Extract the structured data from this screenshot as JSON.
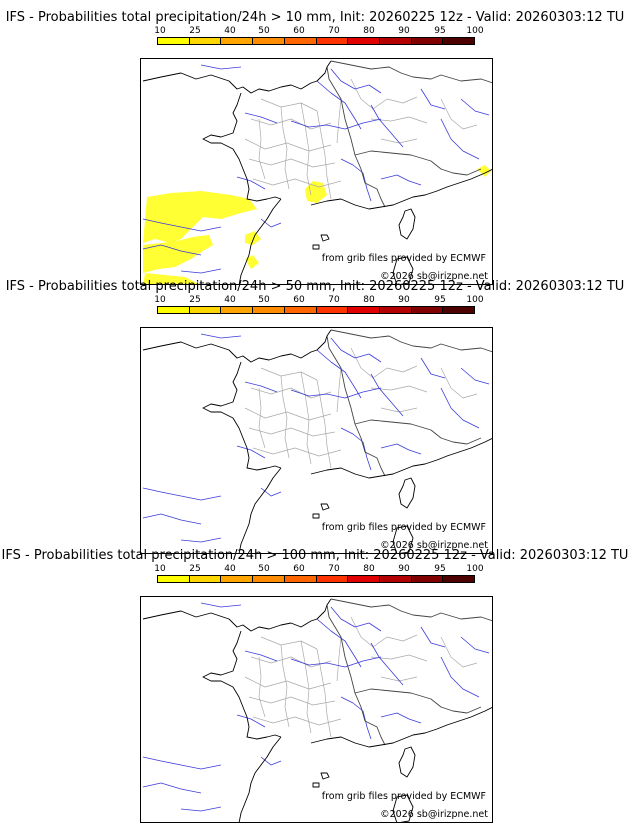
{
  "colorbar": {
    "ticks": [
      "10",
      "25",
      "40",
      "50",
      "60",
      "70",
      "80",
      "90",
      "95",
      "100"
    ],
    "colors": [
      "#ffff00",
      "#ffd700",
      "#ffa500",
      "#ff8c00",
      "#ff6600",
      "#ff3300",
      "#e00000",
      "#b30000",
      "#800000",
      "#4d0000"
    ]
  },
  "panels": [
    {
      "title": "IFS - Probabilities total precipitation/24h > 10 mm, Init: 20260225 12z - Valid: 20260303:12 TU",
      "credit_source": "from grib files provided by ECMWF",
      "credit_copyright": "©2026 sb@irizpne.net",
      "precip_color": "#ffff33"
    },
    {
      "title": "IFS - Probabilities total precipitation/24h > 50 mm, Init: 20260225 12z - Valid: 20260303:12 TU",
      "credit_source": "from grib files provided by ECMWF",
      "credit_copyright": "©2026 sb@irizpne.net"
    },
    {
      "title": "IFS - Probabilities total precipitation/24h > 100 mm, Init: 20260225 12z - Valid: 20260303:12 TU",
      "credit_source": "from grib files provided by ECMWF",
      "credit_copyright": "©2026 sb@irizpne.net"
    }
  ]
}
